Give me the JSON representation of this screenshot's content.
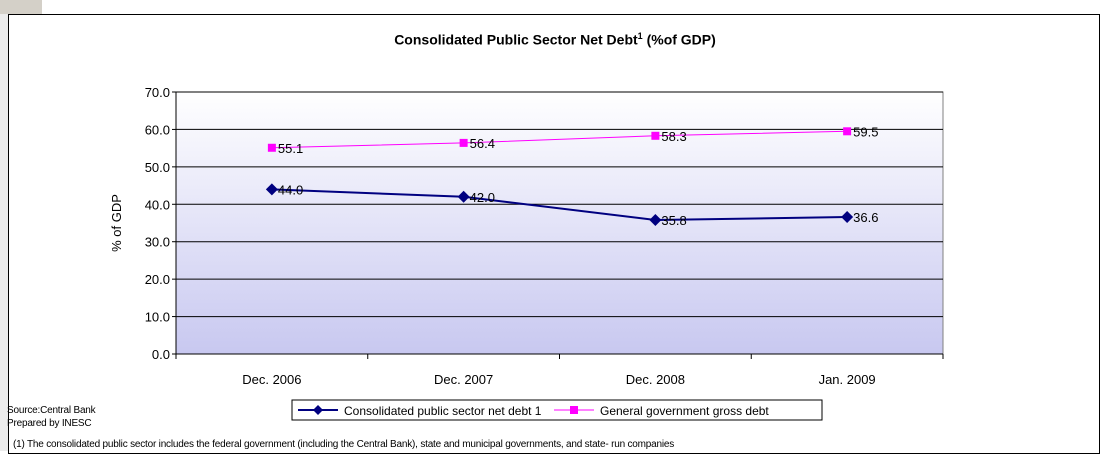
{
  "chart_data": {
    "type": "line",
    "title": "Consolidated Public Sector Net Debt",
    "title_superscript": "1",
    "title_suffix": " (%of GDP)",
    "ylabel": "% of GDP",
    "xlabel": "",
    "categories": [
      "Dec. 2006",
      "Dec. 2007",
      "Dec. 2008",
      "Jan. 2009"
    ],
    "ylim": [
      0,
      70
    ],
    "yticks": [
      "0.0",
      "10.0",
      "20.0",
      "30.0",
      "40.0",
      "50.0",
      "60.0",
      "70.0"
    ],
    "grid": true,
    "legend_position": "bottom",
    "series": [
      {
        "name": "Consolidated public sector net debt 1",
        "values": [
          44.0,
          42.0,
          35.8,
          36.6
        ],
        "labels": [
          "44.0",
          "42.0",
          "35.8",
          "36.6"
        ],
        "color": "#000080",
        "marker": "diamond"
      },
      {
        "name": "General government gross debt",
        "values": [
          55.1,
          56.4,
          58.3,
          59.5
        ],
        "labels": [
          "55.1",
          "56.4",
          "58.3",
          "59.5"
        ],
        "color": "#ff00ff",
        "marker": "square"
      }
    ]
  },
  "footnotes": {
    "source": "Source:Central Bank",
    "prepared": "Prepared by INESC",
    "note": "(1) The consolidated public sector includes the federal government (including the Central Bank), state and municipal governments, and state- run companies"
  }
}
